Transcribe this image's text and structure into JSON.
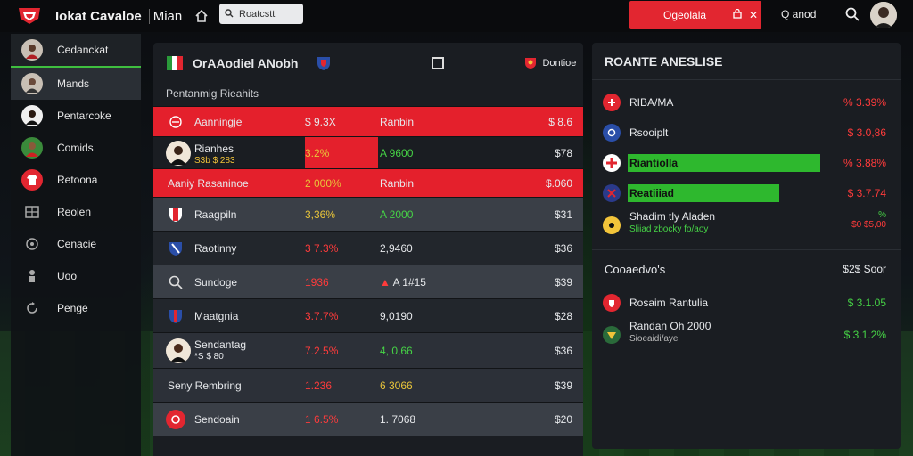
{
  "topbar": {
    "app_title": "Iokat Cavaloe",
    "app_sub": "Mian",
    "search_placeholder": "Roatcstt",
    "alert_label": "Ogeolala",
    "profile_label": "Q anod"
  },
  "sidebar": {
    "items": [
      {
        "label": "Cedanckat"
      },
      {
        "label": "Mands"
      },
      {
        "label": "Pentarcoke"
      },
      {
        "label": "Comids"
      },
      {
        "label": "Retoona"
      },
      {
        "label": "Reolen"
      },
      {
        "label": "Cenacie"
      },
      {
        "label": "Uoo"
      },
      {
        "label": "Penge"
      }
    ]
  },
  "main": {
    "title": "OrAAodiel ANobh",
    "club_label": "Dontioe",
    "section_label": "Pentanmig Rieahits",
    "rows": [
      {
        "name": "Aanningje",
        "c1": "$ 9.3X",
        "c2": "Ranbin",
        "c3": "$ 8.6"
      },
      {
        "name": "Rianhes",
        "sub": "S3b $ 283",
        "c1": "3.2%",
        "c2": "A 9600",
        "c3": "$78"
      },
      {
        "name": "Aaniy Rasaninoe",
        "c1": "2 000%",
        "c2": "Ranbin",
        "c3": "$.060"
      },
      {
        "name": "Raagpiln",
        "c1": "3,36%",
        "c2": "A 2000",
        "c3": "$31"
      },
      {
        "name": "Raotinny",
        "c1": "3 7.3%",
        "c2": "2,9460",
        "c3": "$36"
      },
      {
        "name": "Sundoge",
        "c1": "1936",
        "c2": "A 1#15",
        "c3": "$39"
      },
      {
        "name": "Maatgnia",
        "c1": "3.7.7%",
        "c2": "9,0190",
        "c3": "$28"
      },
      {
        "name": "Sendantag",
        "sub": "*S $ 80",
        "c1": "7.2.5%",
        "c2": "4, 0,66",
        "c3": "$36"
      },
      {
        "name": "Seny Rembring",
        "c1": "1.236",
        "c2": "6 3066",
        "c3": "$39"
      },
      {
        "name": "Sendoain",
        "c1": "1 6.5%",
        "c2": "1. 7068",
        "c3": "$20"
      }
    ]
  },
  "right": {
    "title": "ROANTE ANESLISE",
    "rows": [
      {
        "name": "RIBA/MA",
        "val": "% 3.39%",
        "val_color": "#ff3b3b"
      },
      {
        "name": "Rsooiplt",
        "val": "$ 3.0,86",
        "val_color": "#ff3b3b"
      },
      {
        "name": "Riantiolla",
        "val": "% 3.88%",
        "val_color": "#ff3b3b",
        "bar_pct": 0.8
      },
      {
        "name": "Reatiiiad",
        "val": "$ 3.7.74",
        "val_color": "#ff3b3b",
        "bar_pct": 0.63
      },
      {
        "name": "Shadim tly Aladen",
        "sub": "Sliiad zbocky fo/aoy",
        "val": "%",
        "val2": "$0 $5,00",
        "val_color": "#ff3b3b"
      }
    ],
    "sub_title": "Cooaedvo's",
    "sub_right": "$2$ Soor",
    "rows2": [
      {
        "name": "Rosaim Rantulia",
        "val": "$ 3.1.05",
        "val_color": "#46d446"
      },
      {
        "name": "Randan Oh 2000",
        "sub": "Sioeaidi/aye",
        "val": "$ 3.1.2%",
        "val_color": "#46d446"
      }
    ]
  }
}
